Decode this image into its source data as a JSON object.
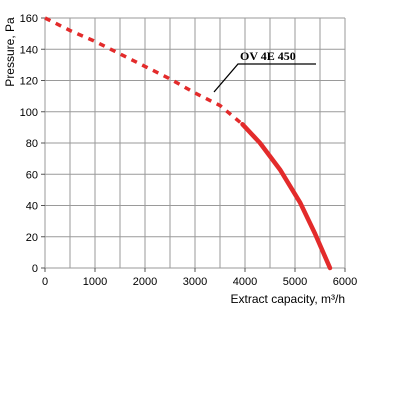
{
  "chart_data": {
    "type": "line",
    "xlabel": "Extract capacity, m³/h",
    "ylabel": "Pressure, Pa",
    "xlim": [
      0,
      6000
    ],
    "ylim": [
      0,
      160
    ],
    "x_ticks": [
      0,
      1000,
      2000,
      3000,
      4000,
      5000,
      6000
    ],
    "y_ticks": [
      0,
      20,
      40,
      60,
      80,
      100,
      120,
      140,
      160
    ],
    "x_grid_step": 500,
    "grid": true,
    "series": [
      {
        "name": "OV 4E 450",
        "color": "#e32b2b",
        "dashed_points": [
          [
            0,
            160
          ],
          [
            500,
            152
          ],
          [
            1000,
            145
          ],
          [
            1500,
            137
          ],
          [
            2000,
            129
          ],
          [
            2500,
            121
          ],
          [
            3000,
            112
          ],
          [
            3500,
            104
          ],
          [
            3950,
            92
          ]
        ],
        "solid_points": [
          [
            3950,
            92
          ],
          [
            4300,
            80
          ],
          [
            4700,
            63
          ],
          [
            5100,
            42
          ],
          [
            5400,
            22
          ],
          [
            5700,
            0
          ]
        ]
      }
    ],
    "annotations": [
      {
        "text": "OV 4E 450"
      }
    ]
  }
}
